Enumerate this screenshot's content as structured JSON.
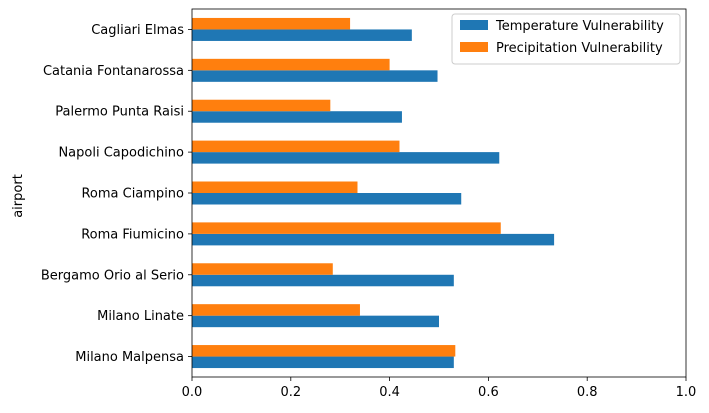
{
  "chart_data": {
    "type": "bar",
    "orientation": "horizontal",
    "title": "",
    "xlabel": "",
    "ylabel": "airport",
    "xlim": [
      0,
      1
    ],
    "xticks": [
      0.0,
      0.2,
      0.4,
      0.6,
      0.8,
      1.0
    ],
    "xtick_labels": [
      "0.0",
      "0.2",
      "0.4",
      "0.6",
      "0.8",
      "1.0"
    ],
    "grid": false,
    "legend_position": "top-right",
    "categories": [
      "Milano Malpensa",
      "Milano Linate",
      "Bergamo Orio al Serio",
      "Roma Fiumicino",
      "Roma Ciampino",
      "Napoli Capodichino",
      "Palermo Punta Raisi",
      "Catania Fontanarossa",
      "Cagliari Elmas"
    ],
    "series": [
      {
        "name": "Temperature Vulnerability",
        "color": "#1f77b4",
        "values": [
          0.53,
          0.5,
          0.53,
          0.733,
          0.545,
          0.622,
          0.425,
          0.497,
          0.445
        ]
      },
      {
        "name": "Precipitation Vulnerability",
        "color": "#ff7f0e",
        "values": [
          0.533,
          0.34,
          0.285,
          0.625,
          0.335,
          0.42,
          0.28,
          0.4,
          0.32
        ]
      }
    ]
  }
}
